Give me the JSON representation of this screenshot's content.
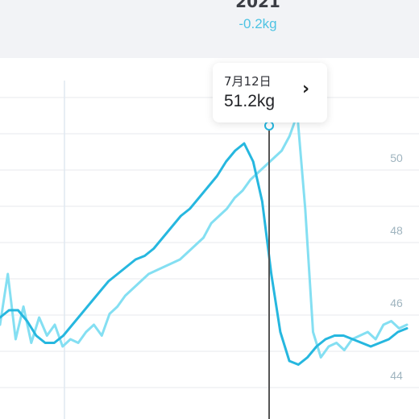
{
  "header": {
    "year": "2021",
    "delta": "-0.2kg"
  },
  "tooltip": {
    "date": "7月12日",
    "value": "51.2kg",
    "chevron_icon": "chevron-right-icon"
  },
  "colors": {
    "raw_line": "#84dff2",
    "smooth_line": "#26b7df",
    "grid": "#e7eaee",
    "cursor": "#555555",
    "axis_text": "#9fb4bf"
  },
  "chart_data": {
    "type": "line",
    "ylim": [
      43,
      53
    ],
    "yticks": [
      "44",
      "46",
      "48",
      "50"
    ],
    "selected": {
      "label": "7月12日",
      "value": 51.2
    },
    "series": [
      {
        "values": [
          45.4,
          46.8,
          45.0,
          45.9,
          44.9,
          45.6,
          45.1,
          45.4,
          44.8,
          45.0,
          44.9,
          45.2,
          45.4,
          45.1,
          45.7,
          45.9,
          46.2,
          46.4,
          46.6,
          46.8,
          46.9,
          47.0,
          47.1,
          47.2,
          47.4,
          47.6,
          47.8,
          48.2,
          48.4,
          48.6,
          48.9,
          49.1,
          49.4,
          49.6,
          49.8,
          50.0,
          50.2,
          50.6,
          51.2,
          48.6,
          45.2,
          44.5,
          44.8,
          44.9,
          44.7,
          45.0,
          45.1,
          45.2,
          45.0,
          45.4,
          45.5,
          45.3,
          45.4
        ]
      },
      {
        "values": [
          45.6,
          45.8,
          45.8,
          45.5,
          45.1,
          44.9,
          44.9,
          45.1,
          45.4,
          45.7,
          46.0,
          46.3,
          46.6,
          46.8,
          47.0,
          47.2,
          47.3,
          47.5,
          47.8,
          48.1,
          48.4,
          48.6,
          48.9,
          49.2,
          49.5,
          49.9,
          50.2,
          50.4,
          49.9,
          48.8,
          46.8,
          45.2,
          44.4,
          44.3,
          44.5,
          44.8,
          45.0,
          45.1,
          45.1,
          45.0,
          44.9,
          44.8,
          44.9,
          45.0,
          45.2,
          45.3
        ]
      }
    ]
  }
}
